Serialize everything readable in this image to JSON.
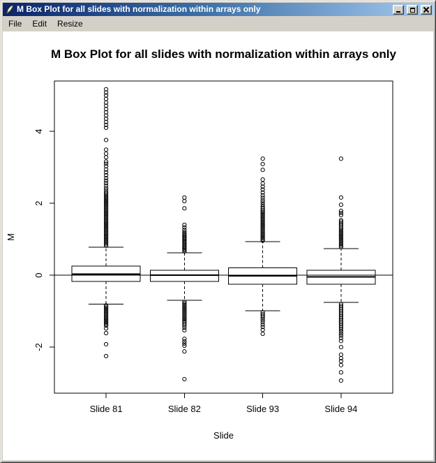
{
  "window": {
    "title": "M Box Plot for all slides with normalization within arrays only",
    "menu": [
      "File",
      "Edit",
      "Resize"
    ]
  },
  "chart_data": {
    "type": "boxplot",
    "title": "M Box Plot for all slides with normalization within arrays only",
    "xlabel": "Slide",
    "ylabel": "M",
    "categories": [
      "Slide 81",
      "Slide 82",
      "Slide 93",
      "Slide 94"
    ],
    "y_ticks": [
      -2,
      0,
      2,
      4
    ],
    "ylim": [
      -3.28,
      5.4
    ],
    "reference_line": 0,
    "grid": false,
    "series": [
      {
        "name": "Slide 81",
        "whisker_low": -0.8,
        "q1": -0.17,
        "median": 0.03,
        "q3": 0.25,
        "whisker_high": 0.78,
        "outliers": [
          0.82,
          0.86,
          0.9,
          0.94,
          0.98,
          1.02,
          1.06,
          1.1,
          1.14,
          1.18,
          1.22,
          1.26,
          1.3,
          1.34,
          1.38,
          1.42,
          1.46,
          1.5,
          1.54,
          1.58,
          1.62,
          1.66,
          1.7,
          1.74,
          1.78,
          1.82,
          1.86,
          1.9,
          1.94,
          1.98,
          2.02,
          2.06,
          2.1,
          2.14,
          2.18,
          2.22,
          2.26,
          2.3,
          2.36,
          2.42,
          2.49,
          2.56,
          2.63,
          2.7,
          2.78,
          2.86,
          2.94,
          3.03,
          3.1,
          3.16,
          3.28,
          3.38,
          3.49,
          3.76,
          4.1,
          4.18,
          4.26,
          4.35,
          4.44,
          4.53,
          4.62,
          4.71,
          4.8,
          4.9,
          5.0,
          5.08,
          5.17,
          -0.84,
          -0.88,
          -0.92,
          -0.96,
          -1.0,
          -1.04,
          -1.08,
          -1.12,
          -1.16,
          -1.2,
          -1.24,
          -1.28,
          -1.32,
          -1.36,
          -1.4,
          -1.48,
          -1.61,
          -1.92,
          -2.25
        ]
      },
      {
        "name": "Slide 82",
        "whisker_low": -0.7,
        "q1": -0.17,
        "median": 0.0,
        "q3": 0.14,
        "whisker_high": 0.62,
        "outliers": [
          0.66,
          0.7,
          0.73,
          0.77,
          0.8,
          0.84,
          0.87,
          0.91,
          0.94,
          0.98,
          1.01,
          1.05,
          1.08,
          1.12,
          1.15,
          1.2,
          1.26,
          1.33,
          1.4,
          1.86,
          2.06,
          2.16,
          -0.74,
          -0.78,
          -0.82,
          -0.86,
          -0.9,
          -0.94,
          -0.98,
          -1.02,
          -1.06,
          -1.1,
          -1.14,
          -1.18,
          -1.22,
          -1.26,
          -1.3,
          -1.35,
          -1.4,
          -1.46,
          -1.53,
          -1.77,
          -1.84,
          -1.9,
          -1.96,
          -2.12,
          -2.89
        ]
      },
      {
        "name": "Slide 93",
        "whisker_low": -0.99,
        "q1": -0.25,
        "median": -0.02,
        "q3": 0.21,
        "whisker_high": 0.93,
        "outliers": [
          0.96,
          1.0,
          1.04,
          1.08,
          1.12,
          1.16,
          1.2,
          1.24,
          1.28,
          1.32,
          1.36,
          1.4,
          1.44,
          1.48,
          1.52,
          1.56,
          1.6,
          1.64,
          1.68,
          1.72,
          1.76,
          1.8,
          1.85,
          1.9,
          1.96,
          2.02,
          2.08,
          2.15,
          2.22,
          2.3,
          2.38,
          2.46,
          2.55,
          2.66,
          2.93,
          3.09,
          3.24,
          -1.03,
          -1.08,
          -1.13,
          -1.18,
          -1.24,
          -1.3,
          -1.37,
          -1.44,
          -1.52,
          -1.63
        ]
      },
      {
        "name": "Slide 94",
        "whisker_low": -0.76,
        "q1": -0.25,
        "median": -0.05,
        "q3": 0.14,
        "whisker_high": 0.74,
        "outliers": [
          0.78,
          0.82,
          0.86,
          0.9,
          0.94,
          0.98,
          1.02,
          1.06,
          1.1,
          1.14,
          1.18,
          1.22,
          1.26,
          1.3,
          1.35,
          1.4,
          1.44,
          1.49,
          1.53,
          1.67,
          1.73,
          1.79,
          1.96,
          2.16,
          3.24,
          -0.8,
          -0.85,
          -0.9,
          -0.95,
          -1.0,
          -1.05,
          -1.1,
          -1.15,
          -1.2,
          -1.25,
          -1.3,
          -1.35,
          -1.4,
          -1.45,
          -1.5,
          -1.56,
          -1.62,
          -1.68,
          -1.75,
          -1.83,
          -2.0,
          -2.21,
          -2.31,
          -2.39,
          -2.5,
          -2.7,
          -2.93
        ]
      }
    ]
  }
}
